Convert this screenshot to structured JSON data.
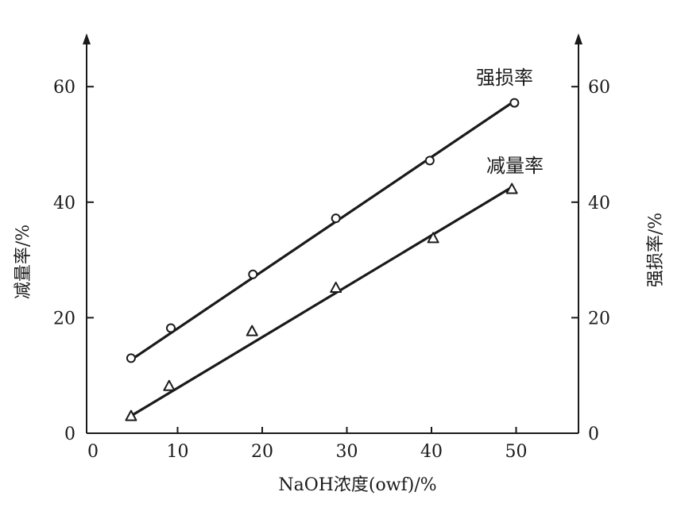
{
  "chart_data": {
    "type": "line",
    "xlabel": "NaOH浓度(owf)/%",
    "ylabel_left": "减量率/%",
    "ylabel_right": "强损率/%",
    "xlim": [
      0,
      55
    ],
    "ylim_left": [
      0,
      70
    ],
    "ylim_right": [
      0,
      70
    ],
    "x_ticks": [
      0,
      10,
      20,
      30,
      40,
      50
    ],
    "y_ticks": [
      0,
      20,
      40,
      60
    ],
    "grid": false,
    "series": [
      {
        "name": "强损率",
        "marker": "circle",
        "axis": "right",
        "x": [
          4.5,
          9.2,
          18.9,
          28.7,
          39.8,
          49.8
        ],
        "y": [
          13.0,
          18.2,
          27.5,
          37.2,
          47.2,
          57.2
        ],
        "fit_line": [
          [
            4.5,
            12.7
          ],
          [
            49.8,
            57.5
          ]
        ]
      },
      {
        "name": "减量率",
        "marker": "triangle",
        "axis": "left",
        "x": [
          4.5,
          9.0,
          18.8,
          28.7,
          40.2,
          49.5
        ],
        "y": [
          3.0,
          8.2,
          17.7,
          25.2,
          33.8,
          42.3
        ],
        "fit_line": [
          [
            4.5,
            3.0
          ],
          [
            49.5,
            42.6
          ]
        ]
      }
    ]
  }
}
